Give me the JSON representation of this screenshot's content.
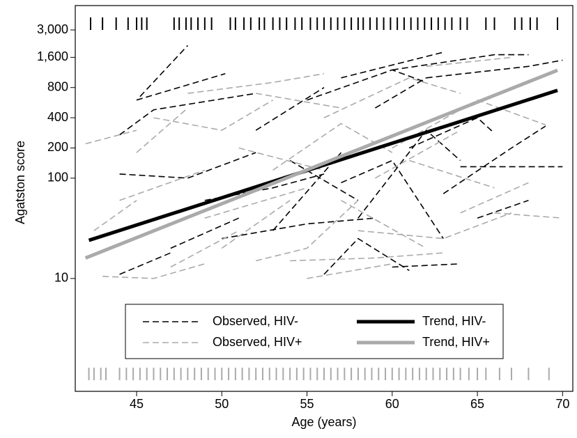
{
  "chart_data": {
    "type": "line",
    "x_label": "Age (years)",
    "y_label": "Agatston score",
    "xlim": [
      41.4,
      70.6
    ],
    "xticks": [
      45,
      50,
      55,
      60,
      65,
      70
    ],
    "ylim": [
      0.75,
      5250
    ],
    "ylog": true,
    "yticks": [
      10,
      100,
      200,
      400,
      800,
      {
        "value": 1600,
        "label": "1,600"
      },
      {
        "value": 3000,
        "label": "3,000"
      }
    ],
    "observed": [
      {
        "name": "Observed, HIV-",
        "color": "#000000",
        "subjects": [
          {
            "x": [
              45.2,
              48
            ],
            "values": [
              650,
              2100
            ]
          },
          {
            "x": [
              45,
              50.2
            ],
            "values": [
              600,
              1100
            ]
          },
          {
            "x": [
              44,
              46,
              52
            ],
            "values": [
              270,
              480,
              700
            ]
          },
          {
            "x": [
              44,
              48
            ],
            "values": [
              110,
              100
            ]
          },
          {
            "x": [
              49,
              53,
              56
            ],
            "values": [
              60,
              80,
              110
            ]
          },
          {
            "x": [
              55,
              60,
              62
            ],
            "values": [
              600,
              1200,
              900
            ]
          },
          {
            "x": [
              57,
              63
            ],
            "values": [
              1000,
              1800
            ]
          },
          {
            "x": [
              60,
              66,
              68
            ],
            "values": [
              1200,
              1700,
              1700
            ]
          },
          {
            "x": [
              62,
              68,
              70
            ],
            "values": [
              1000,
              1300,
              1500
            ]
          },
          {
            "x": [
              64,
              70
            ],
            "values": [
              130,
              130
            ]
          },
          {
            "x": [
              44,
              47
            ],
            "values": [
              11,
              18
            ]
          },
          {
            "x": [
              56,
              58,
              61
            ],
            "values": [
              11,
              25,
              12
            ]
          },
          {
            "x": [
              53,
              57
            ],
            "values": [
              30,
              180
            ]
          },
          {
            "x": [
              58,
              62,
              64
            ],
            "values": [
              40,
              300,
              150
            ]
          },
          {
            "x": [
              60,
              64
            ],
            "values": [
              13,
              14
            ]
          },
          {
            "x": [
              61,
              65,
              66
            ],
            "values": [
              200,
              400,
              280
            ]
          },
          {
            "x": [
              65,
              68
            ],
            "values": [
              40,
              60
            ]
          },
          {
            "x": [
              50,
              55,
              59
            ],
            "values": [
              25,
              35,
              40
            ]
          },
          {
            "x": [
              52,
              56
            ],
            "values": [
              300,
              800
            ]
          },
          {
            "x": [
              47,
              51
            ],
            "values": [
              20,
              40
            ]
          },
          {
            "x": [
              59,
              62
            ],
            "values": [
              500,
              1000
            ]
          },
          {
            "x": [
              54,
              58
            ],
            "values": [
              150,
              60
            ]
          },
          {
            "x": [
              63,
              67,
              69
            ],
            "values": [
              70,
              200,
              330
            ]
          },
          {
            "x": [
              48,
              52
            ],
            "values": [
              100,
              180
            ]
          },
          {
            "x": [
              57,
              60,
              63
            ],
            "values": [
              90,
              150,
              25
            ]
          }
        ]
      },
      {
        "name": "Observed, HIV+",
        "color": "#aaaaaa",
        "subjects": [
          {
            "x": [
              42,
              45
            ],
            "values": [
              220,
              300
            ]
          },
          {
            "x": [
              43,
              46,
              49
            ],
            "values": [
              10.5,
              10,
              14
            ]
          },
          {
            "x": [
              45,
              48
            ],
            "values": [
              180,
              500
            ]
          },
          {
            "x": [
              48,
              53,
              56
            ],
            "values": [
              700,
              900,
              1100
            ]
          },
          {
            "x": [
              50,
              54
            ],
            "values": [
              20,
              60
            ]
          },
          {
            "x": [
              52,
              55,
              58
            ],
            "values": [
              15,
              20,
              60
            ]
          },
          {
            "x": [
              55,
              60
            ],
            "values": [
              10,
              14
            ]
          },
          {
            "x": [
              56,
              61,
              64
            ],
            "values": [
              400,
              1000,
              700
            ]
          },
          {
            "x": [
              58,
              63,
              67
            ],
            "values": [
              30,
              25,
              45
            ]
          },
          {
            "x": [
              62,
              67
            ],
            "values": [
              1300,
              1600
            ]
          },
          {
            "x": [
              60,
              65,
              69
            ],
            "values": [
              200,
              600,
              340
            ]
          },
          {
            "x": [
              44,
              49
            ],
            "values": [
              60,
              120
            ]
          },
          {
            "x": [
              46,
              50,
              53
            ],
            "values": [
              400,
              300,
              600
            ]
          },
          {
            "x": [
              51,
              56
            ],
            "values": [
              200,
              120
            ]
          },
          {
            "x": [
              53,
              57,
              60
            ],
            "values": [
              120,
              350,
              180
            ]
          },
          {
            "x": [
              57,
              62
            ],
            "values": [
              60,
              20
            ]
          },
          {
            "x": [
              64,
              68
            ],
            "values": [
              45,
              90
            ]
          },
          {
            "x": [
              66,
              70
            ],
            "values": [
              45,
              40
            ]
          },
          {
            "x": [
              47,
              51
            ],
            "values": [
              13,
              30
            ]
          },
          {
            "x": [
              49,
              55
            ],
            "values": [
              40,
              80
            ]
          },
          {
            "x": [
              54,
              59,
              63
            ],
            "values": [
              15,
              16,
              18
            ]
          },
          {
            "x": [
              59,
              64
            ],
            "values": [
              100,
              300
            ]
          },
          {
            "x": [
              61,
              66
            ],
            "values": [
              150,
              80
            ]
          },
          {
            "x": [
              42.5,
              45
            ],
            "values": [
              30,
              60
            ]
          },
          {
            "x": [
              52,
              57
            ],
            "values": [
              700,
              500
            ]
          }
        ]
      }
    ],
    "trends": [
      {
        "name": "Trend, HIV-",
        "color": "#000000",
        "x": [
          42.2,
          69.7
        ],
        "values": [
          24,
          750
        ]
      },
      {
        "name": "Trend, HIV+",
        "color": "#aaaaaa",
        "x": [
          42,
          69.7
        ],
        "values": [
          16,
          1190
        ]
      }
    ],
    "rugs": [
      {
        "color": "#000000",
        "position": "top",
        "ages": [
          42.3,
          43,
          43.8,
          44.5,
          45,
          45.3,
          45.6,
          47.2,
          47.5,
          47.9,
          48.2,
          48.6,
          49,
          49.4,
          50.5,
          50.8,
          51.3,
          51.7,
          52.2,
          52.5,
          53,
          53.4,
          53.8,
          54.3,
          54.7,
          55.2,
          55.6,
          56,
          56.4,
          56.8,
          57.2,
          57.6,
          58,
          58.3,
          58.7,
          59.1,
          59.5,
          59.9,
          60.3,
          60.7,
          61.1,
          61.5,
          61.9,
          62.3,
          62.7,
          63.1,
          63.5,
          64,
          64.4,
          65.5,
          66,
          67.2,
          67.6,
          68.1,
          68.5,
          69.7
        ]
      },
      {
        "color": "#aaaaaa",
        "position": "bottom",
        "ages": [
          42.2,
          42.5,
          42.9,
          43.2,
          44,
          44.4,
          44.8,
          45.2,
          45.6,
          46,
          46.4,
          46.8,
          47.2,
          47.6,
          48,
          48.4,
          48.8,
          49.2,
          49.6,
          50,
          50.4,
          50.8,
          51.2,
          51.6,
          52,
          52.4,
          52.8,
          53.2,
          53.6,
          54,
          54.4,
          54.8,
          55.2,
          55.6,
          56,
          56.4,
          56.8,
          57.2,
          57.6,
          58,
          58.4,
          58.8,
          59.2,
          59.6,
          60,
          60.4,
          60.8,
          61.2,
          61.6,
          62,
          62.4,
          62.8,
          63.2,
          63.6,
          64,
          64.5,
          65,
          65.5,
          66.3,
          67,
          68,
          69.2
        ]
      }
    ]
  }
}
